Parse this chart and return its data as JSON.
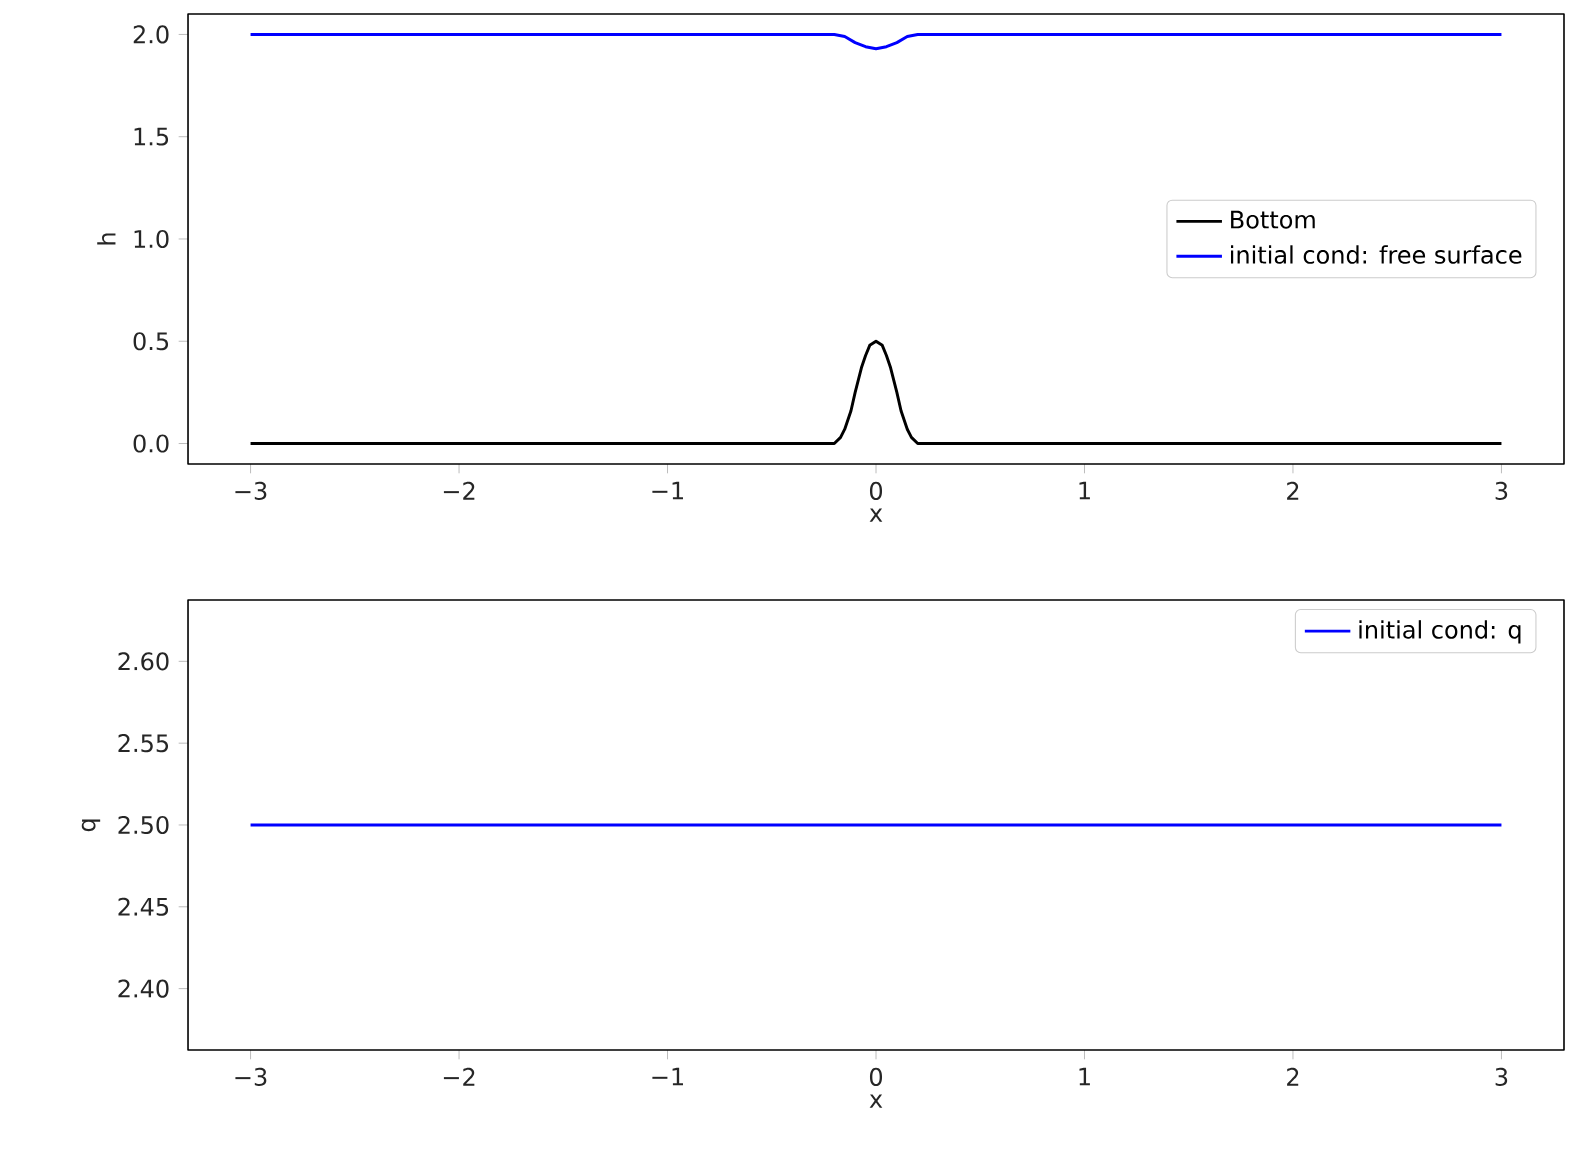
{
  "chart_data": [
    {
      "type": "line",
      "xlabel": "x",
      "ylabel": "h",
      "xlim": [
        -3.3,
        3.3
      ],
      "ylim": [
        -0.1,
        2.1
      ],
      "xticks": [
        {
          "value": -3,
          "label": "−3"
        },
        {
          "value": -2,
          "label": "−2"
        },
        {
          "value": -1,
          "label": "−1"
        },
        0,
        1,
        2,
        3
      ],
      "yticks": [
        {
          "value": 0,
          "label": "0.0"
        },
        {
          "value": 0.5,
          "label": "0.5"
        },
        {
          "value": 1,
          "label": "1.0"
        },
        {
          "value": 1.5,
          "label": "1.5"
        },
        {
          "value": 2,
          "label": "2.0"
        }
      ],
      "legend": "right",
      "grid": false,
      "marker": "none",
      "line_style": "solid",
      "series": [
        {
          "name": "Bottom",
          "color": "#000000",
          "x": [
            -3,
            -0.2,
            -0.17,
            -0.15,
            -0.12,
            -0.1,
            -0.07,
            -0.05,
            -0.03,
            0,
            0.03,
            0.05,
            0.07,
            0.1,
            0.12,
            0.15,
            0.17,
            0.2,
            3
          ],
          "values": [
            0,
            0,
            0.03,
            0.07,
            0.16,
            0.25,
            0.37,
            0.43,
            0.48,
            0.5,
            0.48,
            0.43,
            0.37,
            0.25,
            0.16,
            0.07,
            0.03,
            0,
            0
          ]
        },
        {
          "name": "initial cond: free surface",
          "color": "#0000ff",
          "x": [
            -3,
            -0.2,
            -0.15,
            -0.1,
            -0.05,
            0,
            0.05,
            0.1,
            0.15,
            0.2,
            3
          ],
          "values": [
            2,
            2,
            1.99,
            1.96,
            1.94,
            1.93,
            1.94,
            1.96,
            1.99,
            2,
            2
          ]
        }
      ]
    },
    {
      "type": "line",
      "xlabel": "x",
      "ylabel": "q",
      "xlim": [
        -3.3,
        3.3
      ],
      "ylim": [
        2.3625,
        2.6375
      ],
      "xticks": [
        {
          "value": -3,
          "label": "−3"
        },
        {
          "value": -2,
          "label": "−2"
        },
        {
          "value": -1,
          "label": "−1"
        },
        0,
        1,
        2,
        3
      ],
      "yticks": [
        {
          "value": 2.4,
          "label": "2.40"
        },
        {
          "value": 2.45,
          "label": "2.45"
        },
        {
          "value": 2.5,
          "label": "2.50"
        },
        {
          "value": 2.55,
          "label": "2.55"
        },
        {
          "value": 2.6,
          "label": "2.60"
        }
      ],
      "legend": "top right",
      "grid": false,
      "marker": "none",
      "line_style": "solid",
      "series": [
        {
          "name": "initial cond: q",
          "color": "#0000ff",
          "x": [
            -3,
            3
          ],
          "values": [
            2.5,
            2.5
          ]
        }
      ]
    }
  ]
}
